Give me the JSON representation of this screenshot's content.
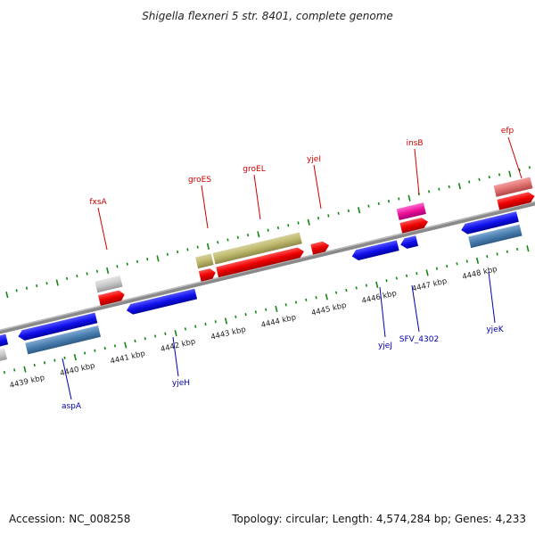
{
  "title": "Shigella flexneri 5 str. 8401, complete genome",
  "accession": "Accession: NC_008258",
  "summary": "Topology: circular; Length: 4,574,284 bp; Genes: 4,233",
  "colors": {
    "backbone": "#8a8a8a",
    "tick_top": "#118811",
    "tick_bottom": "#118811",
    "label_top": "#cc0000",
    "label_bottom": "#0000aa"
  },
  "scale_labels": [
    "4439 kbp",
    "4440 kbp",
    "4441 kbp",
    "4442 kbp",
    "4443 kbp",
    "4444 kbp",
    "4445 kbp",
    "4446 kbp",
    "4447 kbp",
    "4448 kbp"
  ],
  "top_labels": [
    "fxsA",
    "groES",
    "groEL",
    "yjeI",
    "insB",
    "efp"
  ],
  "bottom_labels": [
    "aspA",
    "yjeH",
    "yjeJ",
    "SFV_4302",
    "yjeK"
  ]
}
